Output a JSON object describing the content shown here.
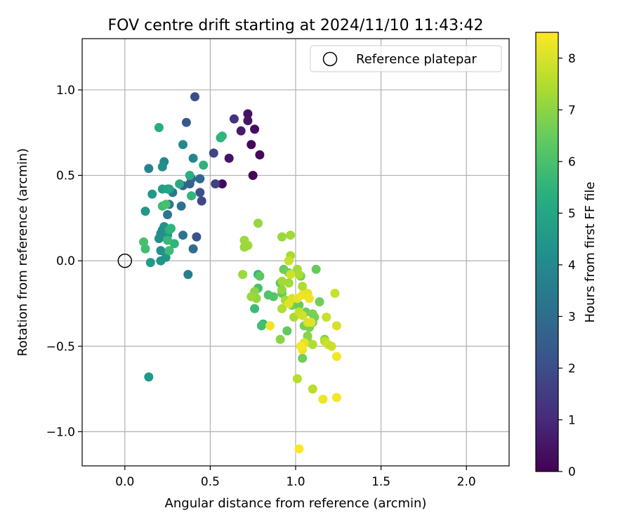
{
  "chart_data": {
    "type": "scatter",
    "title": "FOV centre drift starting at 2024/11/10 11:43:42",
    "xlabel": "Angular distance from reference (arcmin)",
    "ylabel": "Rotation from reference (arcmin)",
    "xlim": [
      -0.25,
      2.25
    ],
    "ylim": [
      -1.2,
      1.3
    ],
    "xticks": [
      0.0,
      0.5,
      1.0,
      1.5,
      2.0
    ],
    "xtick_labels": [
      "0.0",
      "0.5",
      "1.0",
      "1.5",
      "2.0"
    ],
    "yticks": [
      -1.0,
      -0.5,
      0.0,
      0.5,
      1.0
    ],
    "ytick_labels": [
      "−1.0",
      "−0.5",
      "0.0",
      "0.5",
      "1.0"
    ],
    "grid": true,
    "legend": {
      "placement": "top-right",
      "entries": [
        "Reference platepar"
      ]
    },
    "reference_point": [
      0.0,
      0.0
    ],
    "colorbar": {
      "label": "Hours from first FF file",
      "colormap": "viridis",
      "range": [
        0,
        8.5
      ],
      "ticks": [
        0,
        1,
        2,
        3,
        4,
        5,
        6,
        7,
        8
      ],
      "tick_labels": [
        "0",
        "1",
        "2",
        "3",
        "4",
        "5",
        "6",
        "7",
        "8"
      ]
    },
    "series": [
      {
        "points": [
          [
            0.57,
            0.45,
            0.2
          ],
          [
            0.75,
            0.5,
            0.1
          ],
          [
            0.79,
            0.62,
            0.2
          ],
          [
            0.76,
            0.77,
            0.3
          ],
          [
            0.74,
            0.68,
            0.2
          ],
          [
            0.72,
            0.86,
            0.4
          ],
          [
            0.72,
            0.82,
            0.5
          ],
          [
            0.61,
            0.6,
            0.4
          ],
          [
            0.68,
            0.76,
            0.6
          ],
          [
            0.64,
            0.83,
            1.2
          ],
          [
            0.53,
            0.45,
            1.6
          ],
          [
            0.52,
            0.63,
            1.7
          ],
          [
            0.45,
            0.35,
            1.8
          ],
          [
            0.44,
            0.4,
            2.1
          ],
          [
            0.42,
            0.14,
            2.2
          ],
          [
            0.41,
            0.96,
            2.0
          ],
          [
            0.36,
            0.81,
            2.4
          ],
          [
            0.38,
            0.45,
            2.6
          ],
          [
            0.39,
            0.48,
            2.8
          ],
          [
            0.34,
            0.44,
            2.7
          ],
          [
            0.44,
            0.48,
            2.9
          ],
          [
            0.4,
            0.07,
            3.0
          ],
          [
            0.33,
            0.32,
            3.2
          ],
          [
            0.34,
            0.15,
            3.3
          ],
          [
            0.28,
            0.4,
            3.4
          ],
          [
            0.26,
            0.33,
            3.5
          ],
          [
            0.25,
            0.27,
            3.3
          ],
          [
            0.37,
            -0.08,
            3.6
          ],
          [
            0.4,
            0.6,
            3.9
          ],
          [
            0.34,
            0.68,
            4.0
          ],
          [
            0.22,
            0.18,
            3.6
          ],
          [
            0.14,
            0.54,
            3.8
          ],
          [
            0.23,
            0.58,
            4.0
          ],
          [
            0.22,
            0.55,
            4.2
          ],
          [
            0.21,
            0.16,
            4.1
          ],
          [
            0.2,
            0.13,
            4.2
          ],
          [
            0.25,
            0.15,
            4.4
          ],
          [
            0.23,
            0.2,
            4.3
          ],
          [
            0.21,
            0.06,
            4.3
          ],
          [
            0.24,
            0.02,
            4.5
          ],
          [
            0.21,
            0.0,
            4.4
          ],
          [
            0.15,
            -0.01,
            4.6
          ],
          [
            0.16,
            0.39,
            4.6
          ],
          [
            0.12,
            0.29,
            4.5
          ],
          [
            0.22,
            0.42,
            4.8
          ],
          [
            0.26,
            0.42,
            4.9
          ],
          [
            0.25,
            0.42,
            5.0
          ],
          [
            0.32,
            0.45,
            5.1
          ],
          [
            0.38,
            0.5,
            5.3
          ],
          [
            0.46,
            0.56,
            5.4
          ],
          [
            0.56,
            0.72,
            5.4
          ],
          [
            0.57,
            0.73,
            5.6
          ],
          [
            0.39,
            0.38,
            5.6
          ],
          [
            0.2,
            0.78,
            5.2
          ],
          [
            0.14,
            -0.68,
            4.6
          ],
          [
            0.26,
            0.18,
            5.3
          ],
          [
            0.27,
            0.19,
            5.5
          ],
          [
            0.29,
            0.1,
            5.5
          ],
          [
            0.25,
            0.12,
            5.7
          ],
          [
            0.22,
            0.32,
            5.8
          ],
          [
            0.26,
            0.06,
            5.8
          ],
          [
            0.12,
            0.07,
            5.9
          ],
          [
            0.11,
            0.11,
            6.0
          ],
          [
            0.24,
            0.33,
            6.0
          ],
          [
            0.78,
            -0.08,
            5.6
          ],
          [
            0.78,
            -0.16,
            6.0
          ],
          [
            0.76,
            -0.28,
            5.8
          ],
          [
            0.81,
            -0.37,
            5.7
          ],
          [
            0.8,
            -0.38,
            5.9
          ],
          [
            0.84,
            -0.2,
            6.1
          ],
          [
            0.87,
            -0.21,
            6.2
          ],
          [
            0.79,
            -0.09,
            6.3
          ],
          [
            0.91,
            -0.13,
            6.3
          ],
          [
            0.92,
            -0.19,
            6.4
          ],
          [
            0.95,
            -0.41,
            6.4
          ],
          [
            0.93,
            -0.05,
            6.5
          ],
          [
            0.96,
            -0.07,
            6.6
          ],
          [
            0.98,
            -0.26,
            6.6
          ],
          [
            1.02,
            -0.26,
            6.5
          ],
          [
            1.03,
            -0.09,
            6.7
          ],
          [
            1.06,
            -0.3,
            6.6
          ],
          [
            1.05,
            -0.38,
            6.7
          ],
          [
            1.08,
            -0.39,
            6.8
          ],
          [
            1.1,
            -0.31,
            6.8
          ],
          [
            1.1,
            -0.36,
            6.6
          ],
          [
            1.11,
            -0.33,
            6.7
          ],
          [
            1.14,
            -0.24,
            6.6
          ],
          [
            1.12,
            -0.05,
            6.5
          ],
          [
            1.17,
            -0.46,
            6.7
          ],
          [
            1.04,
            -0.57,
            6.6
          ],
          [
            1.07,
            -0.44,
            6.9
          ],
          [
            1.07,
            -0.47,
            7.0
          ],
          [
            0.91,
            -0.46,
            7.0
          ],
          [
            0.76,
            -0.18,
            7.0
          ],
          [
            0.77,
            -0.22,
            7.1
          ],
          [
            0.74,
            -0.21,
            7.2
          ],
          [
            0.7,
            0.12,
            7.2
          ],
          [
            0.72,
            0.09,
            7.3
          ],
          [
            0.7,
            0.08,
            7.2
          ],
          [
            0.69,
            -0.08,
            7.2
          ],
          [
            0.78,
            0.22,
            7.1
          ],
          [
            0.92,
            0.14,
            7.2
          ],
          [
            0.97,
            0.15,
            7.3
          ],
          [
            0.97,
            0.03,
            7.4
          ],
          [
            0.96,
            -0.13,
            7.3
          ],
          [
            0.92,
            -0.12,
            7.3
          ],
          [
            0.92,
            -0.17,
            7.1
          ],
          [
            0.94,
            -0.23,
            7.4
          ],
          [
            0.92,
            -0.28,
            7.5
          ],
          [
            0.99,
            -0.33,
            7.4
          ],
          [
            1.01,
            -0.05,
            7.3
          ],
          [
            1.02,
            -0.08,
            7.4
          ],
          [
            1.04,
            -0.15,
            7.5
          ],
          [
            1.06,
            -0.19,
            7.4
          ],
          [
            1.01,
            -0.69,
            7.6
          ],
          [
            1.1,
            -0.49,
            7.5
          ],
          [
            1.1,
            -0.75,
            7.6
          ],
          [
            1.17,
            -0.47,
            7.7
          ],
          [
            1.19,
            -0.49,
            7.9
          ],
          [
            1.21,
            -0.5,
            7.8
          ],
          [
            1.02,
            -0.3,
            7.8
          ],
          [
            1.04,
            -0.32,
            7.9
          ],
          [
            1.07,
            -0.36,
            8.0
          ],
          [
            1.09,
            -0.36,
            8.1
          ],
          [
            1.18,
            -0.33,
            7.8
          ],
          [
            1.23,
            -0.19,
            7.8
          ],
          [
            1.24,
            -0.38,
            8.0
          ],
          [
            0.96,
            0.0,
            7.8
          ],
          [
            0.97,
            -0.08,
            7.9
          ],
          [
            0.98,
            -0.22,
            8.0
          ],
          [
            0.96,
            -0.25,
            8.1
          ],
          [
            1.01,
            -0.22,
            8.2
          ],
          [
            1.04,
            -0.2,
            8.3
          ],
          [
            1.07,
            -0.19,
            8.2
          ],
          [
            1.08,
            -0.22,
            8.3
          ],
          [
            1.05,
            -0.48,
            8.2
          ],
          [
            1.04,
            -0.52,
            8.3
          ],
          [
            1.03,
            -0.5,
            8.4
          ],
          [
            0.85,
            -0.38,
            8.3
          ],
          [
            1.16,
            -0.81,
            8.3
          ],
          [
            1.24,
            -0.8,
            8.4
          ],
          [
            1.24,
            -0.56,
            8.4
          ],
          [
            1.02,
            -1.1,
            8.5
          ]
        ]
      }
    ]
  }
}
